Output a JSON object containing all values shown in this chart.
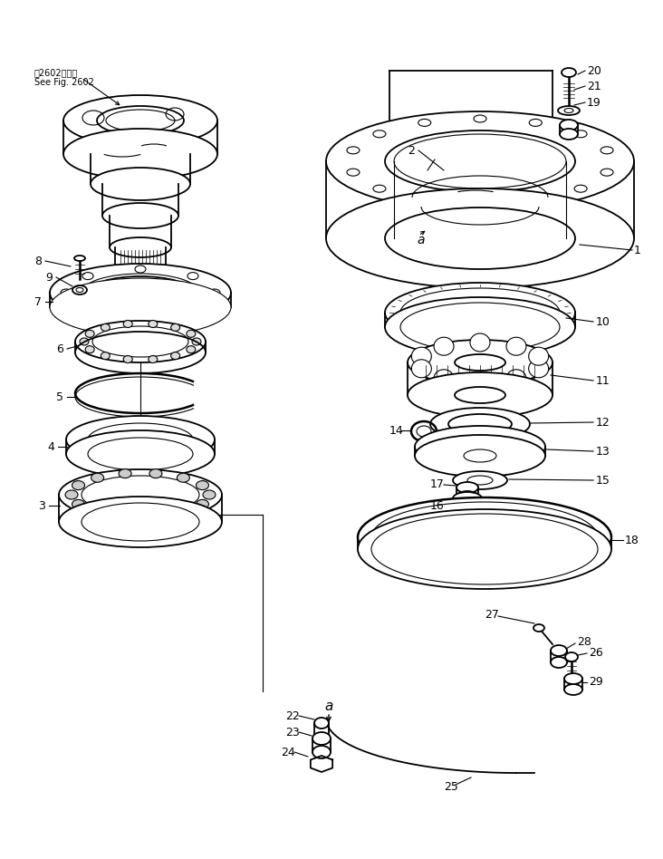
{
  "background_color": "#ffffff",
  "line_color": "#000000",
  "fig_width": 7.32,
  "fig_height": 9.48,
  "dpi": 100,
  "note_line1": "第2602図参照",
  "note_line2": "See Fig. 2602"
}
